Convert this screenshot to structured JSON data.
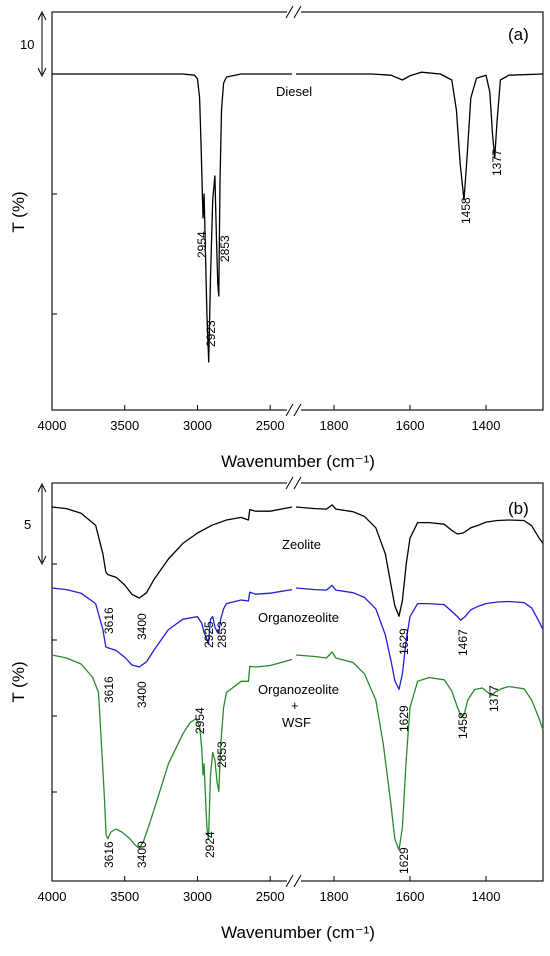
{
  "chart_data": [
    {
      "type": "line",
      "panel_label": "(a)",
      "xlabel": "Wavenumber (cm⁻¹)",
      "ylabel": "T (%)",
      "x_axis_break": [
        2350,
        1900
      ],
      "x_ticks": [
        4000,
        3500,
        3000,
        2500,
        1800,
        1600,
        1400
      ],
      "scale_bar": {
        "value": "10"
      },
      "grid": false,
      "series": [
        {
          "name": "Diesel",
          "color": "#000000",
          "points": [
            [
              4000,
              0
            ],
            [
              3500,
              0
            ],
            [
              3100,
              0
            ],
            [
              3020,
              -0.2
            ],
            [
              3000,
              -0.8
            ],
            [
              2985,
              -4
            ],
            [
              2975,
              -12
            ],
            [
              2962,
              -24
            ],
            [
              2954,
              -20
            ],
            [
              2945,
              -30
            ],
            [
              2935,
              -40
            ],
            [
              2923,
              -48
            ],
            [
              2910,
              -34
            ],
            [
              2895,
              -21
            ],
            [
              2880,
              -17
            ],
            [
              2870,
              -27
            ],
            [
              2860,
              -35
            ],
            [
              2853,
              -37
            ],
            [
              2845,
              -18
            ],
            [
              2835,
              -6
            ],
            [
              2820,
              -1.5
            ],
            [
              2800,
              -0.5
            ],
            [
              2700,
              0
            ],
            [
              2350,
              0
            ],
            [
              1900,
              0
            ],
            [
              1800,
              0
            ],
            [
              1700,
              0
            ],
            [
              1650,
              -0.2
            ],
            [
              1620,
              -1
            ],
            [
              1600,
              -0.3
            ],
            [
              1570,
              0.3
            ],
            [
              1520,
              0
            ],
            [
              1490,
              -1
            ],
            [
              1478,
              -6
            ],
            [
              1468,
              -15
            ],
            [
              1458,
              -21
            ],
            [
              1450,
              -14
            ],
            [
              1440,
              -4
            ],
            [
              1425,
              -0.7
            ],
            [
              1400,
              -0.2
            ],
            [
              1390,
              -3
            ],
            [
              1383,
              -10
            ],
            [
              1377,
              -14
            ],
            [
              1371,
              -8
            ],
            [
              1362,
              -1
            ],
            [
              1340,
              -0.2
            ],
            [
              1250,
              0
            ]
          ]
        }
      ],
      "annotations": [
        "2954",
        "2923",
        "2853",
        "1458",
        "1377"
      ]
    },
    {
      "type": "line",
      "panel_label": "(b)",
      "xlabel": "Wavenumber (cm⁻¹)",
      "ylabel": "T (%)",
      "x_axis_break": [
        2350,
        1900
      ],
      "x_ticks": [
        4000,
        3500,
        3000,
        2500,
        1800,
        1600,
        1400
      ],
      "scale_bar": {
        "value": "5"
      },
      "grid": false,
      "series": [
        {
          "name": "Zeolite",
          "color": "#000000",
          "points": [
            [
              4000,
              0
            ],
            [
              3900,
              -0.3
            ],
            [
              3800,
              -1.2
            ],
            [
              3700,
              -3.5
            ],
            [
              3650,
              -9
            ],
            [
              3630,
              -12.5
            ],
            [
              3616,
              -13
            ],
            [
              3560,
              -13.5
            ],
            [
              3500,
              -15
            ],
            [
              3450,
              -16.8
            ],
            [
              3400,
              -17.5
            ],
            [
              3350,
              -16.5
            ],
            [
              3300,
              -14
            ],
            [
              3200,
              -10
            ],
            [
              3100,
              -7
            ],
            [
              3000,
              -5
            ],
            [
              2900,
              -3.5
            ],
            [
              2800,
              -2.5
            ],
            [
              2700,
              -2
            ],
            [
              2650,
              -2.5
            ],
            [
              2640,
              -0.5
            ],
            [
              2600,
              -0.8
            ],
            [
              2500,
              -0.8
            ],
            [
              2350,
              0
            ],
            [
              1900,
              0
            ],
            [
              1850,
              -0.3
            ],
            [
              1820,
              -0.4
            ],
            [
              1805,
              0.4
            ],
            [
              1795,
              -0.4
            ],
            [
              1750,
              -0.9
            ],
            [
              1720,
              -1.8
            ],
            [
              1690,
              -4
            ],
            [
              1665,
              -9
            ],
            [
              1650,
              -15
            ],
            [
              1640,
              -19
            ],
            [
              1629,
              -21
            ],
            [
              1620,
              -18
            ],
            [
              1610,
              -11
            ],
            [
              1600,
              -6
            ],
            [
              1580,
              -3
            ],
            [
              1550,
              -3
            ],
            [
              1510,
              -3.3
            ],
            [
              1490,
              -4.5
            ],
            [
              1475,
              -5.2
            ],
            [
              1460,
              -5
            ],
            [
              1440,
              -4
            ],
            [
              1420,
              -3.5
            ],
            [
              1400,
              -2.9
            ],
            [
              1370,
              -2.6
            ],
            [
              1340,
              -2.5
            ],
            [
              1300,
              -2.6
            ],
            [
              1280,
              -3.6
            ],
            [
              1260,
              -6
            ],
            [
              1250,
              -7
            ]
          ]
        },
        {
          "name": "Organozeolite",
          "color": "#1f1fd6",
          "points": [
            [
              4000,
              0
            ],
            [
              3900,
              -0.3
            ],
            [
              3800,
              -1
            ],
            [
              3700,
              -3
            ],
            [
              3650,
              -8
            ],
            [
              3630,
              -11.3
            ],
            [
              3616,
              -11.5
            ],
            [
              3560,
              -12
            ],
            [
              3500,
              -13.3
            ],
            [
              3450,
              -14.8
            ],
            [
              3400,
              -15.2
            ],
            [
              3350,
              -14.2
            ],
            [
              3300,
              -12
            ],
            [
              3200,
              -8
            ],
            [
              3100,
              -6
            ],
            [
              3000,
              -5.5
            ],
            [
              2970,
              -6.8
            ],
            [
              2955,
              -8.5
            ],
            [
              2940,
              -9.5
            ],
            [
              2925,
              -10.8
            ],
            [
              2910,
              -6
            ],
            [
              2895,
              -5.5
            ],
            [
              2880,
              -7.5
            ],
            [
              2865,
              -8.4
            ],
            [
              2853,
              -8.6
            ],
            [
              2840,
              -6
            ],
            [
              2820,
              -4
            ],
            [
              2800,
              -3
            ],
            [
              2700,
              -2.3
            ],
            [
              2650,
              -2.5
            ],
            [
              2640,
              -0.8
            ],
            [
              2600,
              -1.2
            ],
            [
              2500,
              -1
            ],
            [
              2350,
              -0.3
            ],
            [
              1900,
              0
            ],
            [
              1850,
              -0.3
            ],
            [
              1820,
              -0.4
            ],
            [
              1805,
              0.5
            ],
            [
              1795,
              -0.4
            ],
            [
              1750,
              -0.9
            ],
            [
              1720,
              -1.8
            ],
            [
              1690,
              -4
            ],
            [
              1665,
              -9
            ],
            [
              1650,
              -14
            ],
            [
              1640,
              -17.8
            ],
            [
              1629,
              -19.5
            ],
            [
              1620,
              -16.5
            ],
            [
              1610,
              -10
            ],
            [
              1600,
              -5.5
            ],
            [
              1580,
              -3
            ],
            [
              1550,
              -3
            ],
            [
              1510,
              -3.2
            ],
            [
              1490,
              -4.5
            ],
            [
              1475,
              -5.5
            ],
            [
              1467,
              -6.2
            ],
            [
              1455,
              -5.5
            ],
            [
              1440,
              -4.2
            ],
            [
              1420,
              -3.5
            ],
            [
              1400,
              -3
            ],
            [
              1370,
              -2.7
            ],
            [
              1340,
              -2.6
            ],
            [
              1300,
              -2.8
            ],
            [
              1280,
              -3.8
            ],
            [
              1260,
              -6.5
            ],
            [
              1250,
              -8
            ]
          ]
        },
        {
          "name": "Organozeolite + WSF",
          "color": "#2a8a2a",
          "points": [
            [
              4000,
              0
            ],
            [
              3900,
              -0.4
            ],
            [
              3800,
              -1.2
            ],
            [
              3720,
              -3
            ],
            [
              3680,
              -5
            ],
            [
              3660,
              -12
            ],
            [
              3640,
              -19
            ],
            [
              3628,
              -24
            ],
            [
              3616,
              -24.5
            ],
            [
              3595,
              -23.6
            ],
            [
              3560,
              -23.2
            ],
            [
              3520,
              -23.6
            ],
            [
              3470,
              -24.4
            ],
            [
              3430,
              -25.3
            ],
            [
              3400,
              -25.8
            ],
            [
              3370,
              -24.8
            ],
            [
              3330,
              -22.5
            ],
            [
              3280,
              -19.5
            ],
            [
              3200,
              -14.5
            ],
            [
              3100,
              -10.5
            ],
            [
              3050,
              -9
            ],
            [
              3010,
              -8.5
            ],
            [
              2985,
              -9.5
            ],
            [
              2970,
              -12.5
            ],
            [
              2962,
              -16
            ],
            [
              2954,
              -14.5
            ],
            [
              2945,
              -19
            ],
            [
              2935,
              -23
            ],
            [
              2924,
              -24.6
            ],
            [
              2910,
              -16
            ],
            [
              2895,
              -13
            ],
            [
              2880,
              -14
            ],
            [
              2865,
              -17
            ],
            [
              2853,
              -18.2
            ],
            [
              2840,
              -12
            ],
            [
              2820,
              -7
            ],
            [
              2800,
              -5
            ],
            [
              2700,
              -3.5
            ],
            [
              2650,
              -3.5
            ],
            [
              2640,
              -1.5
            ],
            [
              2600,
              -1.6
            ],
            [
              2500,
              -1.4
            ],
            [
              2350,
              -0.6
            ],
            [
              1900,
              0
            ],
            [
              1850,
              -0.2
            ],
            [
              1820,
              -0.4
            ],
            [
              1805,
              0.4
            ],
            [
              1795,
              -0.4
            ],
            [
              1750,
              -1
            ],
            [
              1720,
              -2.5
            ],
            [
              1690,
              -6
            ],
            [
              1670,
              -12
            ],
            [
              1650,
              -20
            ],
            [
              1640,
              -24.5
            ],
            [
              1629,
              -26
            ],
            [
              1620,
              -23
            ],
            [
              1610,
              -14
            ],
            [
              1600,
              -7
            ],
            [
              1580,
              -3.5
            ],
            [
              1550,
              -3
            ],
            [
              1510,
              -3.3
            ],
            [
              1490,
              -4.8
            ],
            [
              1475,
              -7
            ],
            [
              1464,
              -8.3
            ],
            [
              1458,
              -8
            ],
            [
              1448,
              -6
            ],
            [
              1430,
              -4.6
            ],
            [
              1410,
              -4.4
            ],
            [
              1395,
              -5
            ],
            [
              1385,
              -5.4
            ],
            [
              1377,
              -5
            ],
            [
              1360,
              -4.5
            ],
            [
              1340,
              -4.2
            ],
            [
              1300,
              -4.5
            ],
            [
              1280,
              -6
            ],
            [
              1260,
              -8.5
            ],
            [
              1250,
              -10
            ]
          ]
        }
      ],
      "annotations": [
        "3616",
        "3400",
        "3616",
        "3400",
        "2925",
        "2853",
        "1629",
        "1467",
        "1629",
        "1458",
        "1377",
        "2954",
        "2853",
        "3616",
        "3400",
        "2924",
        "1629"
      ],
      "series_labels": {
        "zeolite": "Zeolite",
        "organozeolite": "Organozeolite",
        "wsf_line1": "Organozeolite",
        "wsf_line2": "+",
        "wsf_line3": "WSF"
      }
    }
  ]
}
